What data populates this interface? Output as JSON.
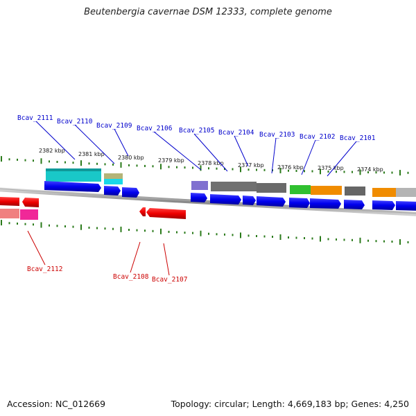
{
  "title": "Beutenbergia cavernae DSM 12333, complete genome",
  "footer": {
    "accession": "Accession: NC_012669",
    "summary": "Topology: circular; Length: 4,669,183 bp; Genes: 4,250"
  },
  "colors": {
    "forward_label": "#0000cc",
    "reverse_label": "#cc0000",
    "tick": "#2a7a1a",
    "strand": "#0000ee",
    "strand_reverse": "#ee0000"
  },
  "ruler_labels": [
    {
      "label": "2382 kbp"
    },
    {
      "label": "2381 kbp"
    },
    {
      "label": "2380 kbp"
    },
    {
      "label": "2379 kbp"
    },
    {
      "label": "2378 kbp"
    },
    {
      "label": "2377 kbp"
    },
    {
      "label": "2376 kbp"
    },
    {
      "label": "2375 kbp"
    },
    {
      "label": "2374 kbp"
    }
  ],
  "genes_forward": [
    {
      "label": "Bcav_2111"
    },
    {
      "label": "Bcav_2110"
    },
    {
      "label": "Bcav_2109"
    },
    {
      "label": "Bcav_2106"
    },
    {
      "label": "Bcav_2105"
    },
    {
      "label": "Bcav_2104"
    },
    {
      "label": "Bcav_2103"
    },
    {
      "label": "Bcav_2102"
    },
    {
      "label": "Bcav_2101"
    }
  ],
  "genes_reverse": [
    {
      "label": "Bcav_2112"
    },
    {
      "label": "Bcav_2108"
    },
    {
      "label": "Bcav_2107"
    }
  ],
  "cog_colors": [
    "#19c8c8",
    "#b4b478",
    "#8070d0",
    "#707070",
    "#30c030",
    "#f08c00",
    "#b4b4b4",
    "#f08080",
    "#f02898"
  ]
}
